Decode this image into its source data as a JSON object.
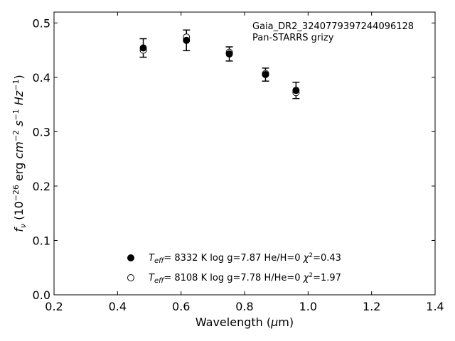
{
  "chart_data": {
    "type": "scatter",
    "annotation": {
      "object_name": "Gaia_DR2_3240779397244096128",
      "filters": "Pan-STARRS grizy"
    },
    "xlim": [
      0.2,
      1.4
    ],
    "ylim": [
      0.0,
      0.52
    ],
    "xticks": [
      0.2,
      0.4,
      0.6,
      0.8,
      1.0,
      1.2,
      1.4
    ],
    "xtick_labels": [
      "0.2",
      "0.4",
      "0.6",
      "0.8",
      "1.0",
      "1.2",
      "1.4"
    ],
    "yticks": [
      0.0,
      0.1,
      0.2,
      0.3,
      0.4,
      0.5
    ],
    "ytick_labels": [
      "0.0",
      "0.1",
      "0.2",
      "0.3",
      "0.4",
      "0.5"
    ],
    "grid": false,
    "legend_position": "bottom-center",
    "series": [
      {
        "marker": "filled-circle",
        "points": [
          {
            "x": 0.481,
            "y": 0.454,
            "err": 0.017
          },
          {
            "x": 0.617,
            "y": 0.468,
            "err": 0.019
          },
          {
            "x": 0.752,
            "y": 0.443,
            "err": 0.013
          },
          {
            "x": 0.866,
            "y": 0.405,
            "err": 0.012
          },
          {
            "x": 0.962,
            "y": 0.376,
            "err": 0.015
          }
        ],
        "legend_label": {
          "teff_value": "8332 K",
          "logg_text": "log g=7.87",
          "comp_text": "He/H=0",
          "chi2_value": "=0.43"
        }
      },
      {
        "marker": "open-circle",
        "points": [
          {
            "x": 0.481,
            "y": 0.45
          },
          {
            "x": 0.617,
            "y": 0.474
          },
          {
            "x": 0.752,
            "y": 0.446
          },
          {
            "x": 0.866,
            "y": 0.407
          },
          {
            "x": 0.962,
            "y": 0.372
          }
        ],
        "legend_label": {
          "teff_value": "8108 K",
          "logg_text": "log g=7.78",
          "comp_text": "H/He=0",
          "chi2_value": "=1.97"
        }
      }
    ],
    "colors": {
      "marker": "#000000",
      "axes": "#000000",
      "background": "#ffffff"
    }
  }
}
